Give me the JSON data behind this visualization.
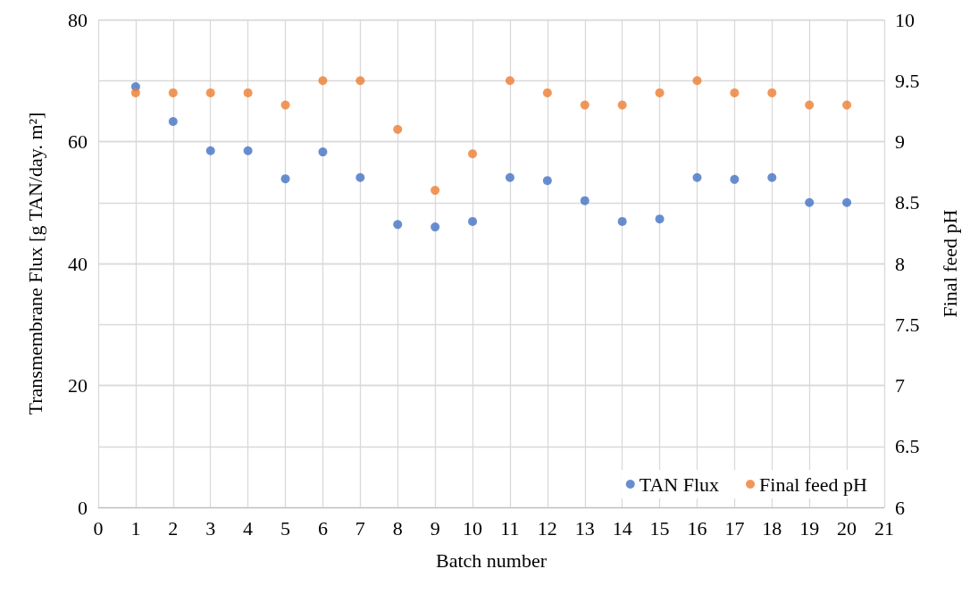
{
  "chart_data": {
    "type": "scatter",
    "xlabel": "Batch number",
    "ylabel": "Transmembrane Flux [g TAN/day. m²]",
    "y2label": "Final feed pH",
    "x": [
      1,
      2,
      3,
      4,
      5,
      6,
      7,
      8,
      9,
      10,
      11,
      12,
      13,
      14,
      15,
      16,
      17,
      18,
      19,
      20
    ],
    "series": [
      {
        "name": "TAN Flux",
        "color": "#4472c4",
        "values": [
          69,
          63.3,
          58.5,
          58.5,
          53.9,
          58.3,
          54.1,
          46.4,
          46.0,
          46.9,
          54.1,
          53.6,
          50.3,
          46.9,
          47.3,
          54.1,
          53.8,
          54.1,
          50.0,
          50.0
        ]
      },
      {
        "name": "Final feed pH",
        "color": "#ed7d31",
        "axis": "y2",
        "values": [
          9.4,
          9.4,
          9.4,
          9.4,
          9.3,
          9.5,
          9.5,
          9.1,
          8.6,
          8.9,
          9.5,
          9.4,
          9.3,
          9.3,
          9.4,
          9.5,
          9.4,
          9.4,
          9.3,
          9.3
        ]
      }
    ],
    "xlim": [
      0,
      21
    ],
    "xticks": [
      0,
      1,
      2,
      3,
      4,
      5,
      6,
      7,
      8,
      9,
      10,
      11,
      12,
      13,
      14,
      15,
      16,
      17,
      18,
      19,
      20,
      21
    ],
    "ylim": [
      0,
      80
    ],
    "yticks": [
      0,
      20,
      40,
      60,
      80
    ],
    "y2lim": [
      6,
      10
    ],
    "y2ticks": [
      6,
      6.5,
      7,
      7.5,
      8,
      8.5,
      9,
      9.5,
      10
    ],
    "grid": true,
    "legend": "bottom right",
    "marker": "circle"
  }
}
